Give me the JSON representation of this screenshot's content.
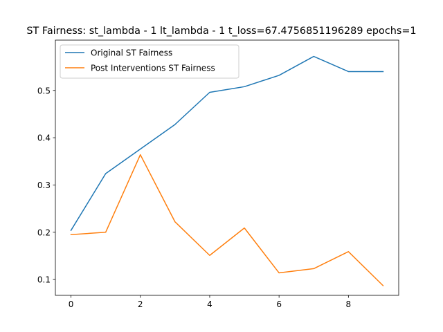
{
  "chart_data": {
    "type": "line",
    "title": "ST Fairness: st_lambda - 1 lt_lambda - 1 t_loss=67.4756851196289 epochs=1",
    "xlabel": "",
    "ylabel": "",
    "xlim": [
      -0.45,
      9.45
    ],
    "ylim": [
      0.0665,
      0.6065
    ],
    "xticks": [
      0,
      2,
      4,
      6,
      8
    ],
    "yticks": [
      0.1,
      0.2,
      0.3,
      0.4,
      0.5
    ],
    "grid": false,
    "legend_position": "top-left",
    "x": [
      0,
      1,
      2,
      3,
      4,
      5,
      6,
      7,
      8,
      9
    ],
    "series": [
      {
        "name": "Original ST Fairness",
        "color": "#1f77b4",
        "values": [
          0.204,
          0.324,
          0.376,
          0.428,
          0.496,
          0.508,
          0.532,
          0.572,
          0.54,
          0.54
        ]
      },
      {
        "name": "Post Interventions ST Fairness",
        "color": "#ff7f0e",
        "values": [
          0.195,
          0.2,
          0.364,
          0.222,
          0.151,
          0.209,
          0.114,
          0.123,
          0.159,
          0.087
        ]
      }
    ]
  }
}
